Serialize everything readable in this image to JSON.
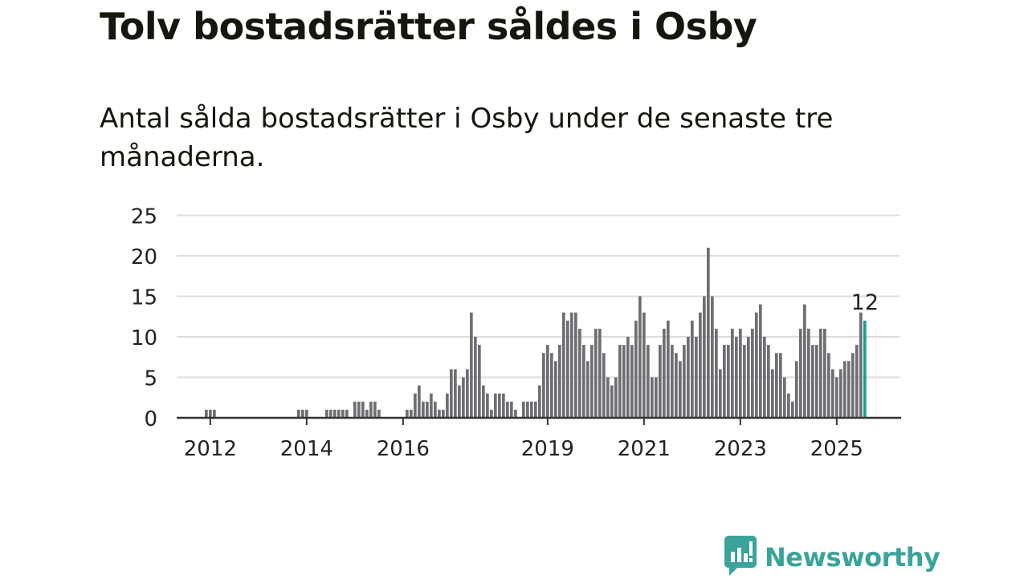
{
  "title": "Tolv bostadsrätter såldes i Osby",
  "subtitle": "Antal sålda bostadsrätter i Osby under de senaste tre månaderna.",
  "logo": {
    "text": "Newsworthy",
    "icon": "bar-chart-bubble-icon"
  },
  "colors": {
    "bar": "#6f6e73",
    "highlight": "#1a9e96",
    "grid": "#dcdcdc",
    "axis": "#333333",
    "brand": "#3aa39a"
  },
  "chart_data": {
    "type": "bar",
    "start": "2011-11",
    "interval": "month",
    "values": [
      0,
      1,
      1,
      1,
      0,
      0,
      0,
      0,
      0,
      0,
      0,
      0,
      0,
      0,
      0,
      0,
      0,
      0,
      0,
      0,
      0,
      0,
      0,
      0,
      1,
      1,
      1,
      0,
      0,
      0,
      0,
      1,
      1,
      1,
      1,
      1,
      1,
      0,
      2,
      2,
      2,
      1,
      2,
      2,
      1,
      0,
      0,
      0,
      0,
      0,
      0,
      1,
      1,
      3,
      4,
      2,
      2,
      3,
      2,
      1,
      1,
      3,
      6,
      6,
      4,
      5,
      6,
      13,
      10,
      9,
      4,
      3,
      1,
      3,
      3,
      3,
      2,
      2,
      1,
      0,
      2,
      2,
      2,
      2,
      4,
      8,
      9,
      8,
      7,
      9,
      13,
      12,
      13,
      13,
      11,
      9,
      7,
      9,
      11,
      11,
      8,
      5,
      4,
      5,
      9,
      9,
      10,
      9,
      12,
      15,
      13,
      9,
      5,
      5,
      9,
      11,
      12,
      9,
      8,
      7,
      9,
      10,
      12,
      10,
      13,
      15,
      21,
      15,
      11,
      6,
      9,
      9,
      11,
      10,
      11,
      9,
      10,
      11,
      13,
      14,
      10,
      9,
      6,
      8,
      8,
      5,
      3,
      2,
      7,
      11,
      14,
      11,
      9,
      9,
      11,
      11,
      8,
      6,
      5,
      6,
      7,
      7,
      8,
      9,
      13,
      12
    ],
    "highlight_last": true,
    "last_label": "12",
    "ylim": [
      0,
      25
    ],
    "yticks": [
      0,
      5,
      10,
      15,
      20,
      25
    ],
    "xticks": [
      {
        "label": "2012",
        "index": 2
      },
      {
        "label": "2014",
        "index": 26
      },
      {
        "label": "2016",
        "index": 50
      },
      {
        "label": "2019",
        "index": 86
      },
      {
        "label": "2021",
        "index": 110
      },
      {
        "label": "2023",
        "index": 134
      },
      {
        "label": "2025",
        "index": 158
      }
    ],
    "grid": true,
    "xlabel": "",
    "ylabel": ""
  }
}
